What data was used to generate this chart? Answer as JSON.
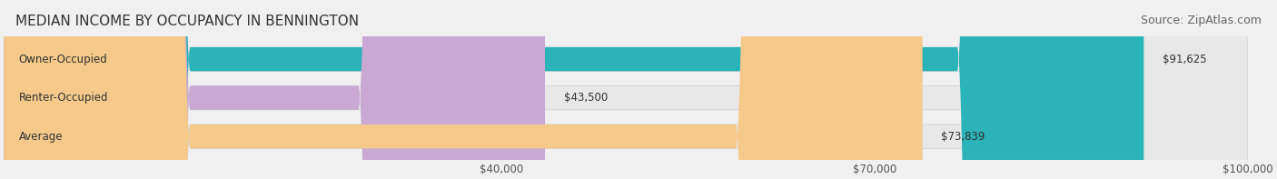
{
  "title": "MEDIAN INCOME BY OCCUPANCY IN BENNINGTON",
  "source": "Source: ZipAtlas.com",
  "categories": [
    "Owner-Occupied",
    "Renter-Occupied",
    "Average"
  ],
  "values": [
    91625,
    43500,
    73839
  ],
  "bar_colors": [
    "#2ab3b8",
    "#c9a8d4",
    "#f5c98a"
  ],
  "bar_labels": [
    "$91,625",
    "$43,500",
    "$73,839"
  ],
  "xlim": [
    0,
    100000
  ],
  "xticks": [
    40000,
    70000,
    100000
  ],
  "xtick_labels": [
    "$40,000",
    "$70,000",
    "$100,000"
  ],
  "bg_color": "#f0f0f0",
  "bar_bg_color": "#e8e8e8",
  "title_fontsize": 11,
  "source_fontsize": 9,
  "label_fontsize": 8.5,
  "tick_fontsize": 8.5
}
